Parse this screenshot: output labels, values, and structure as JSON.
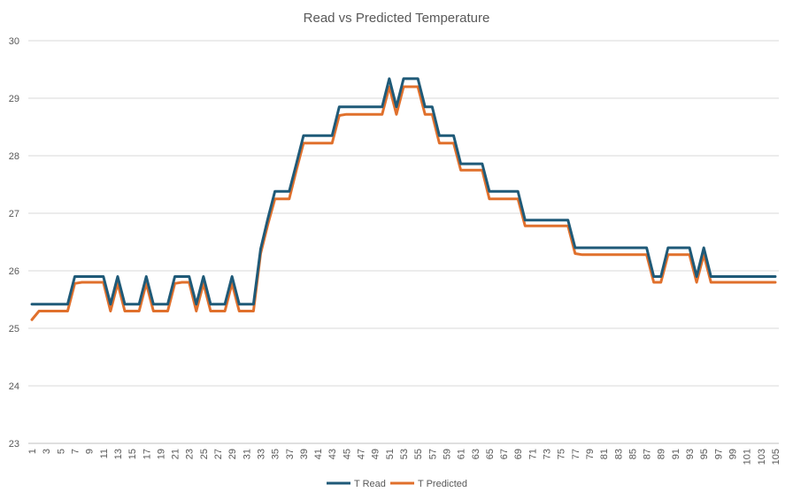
{
  "chart_data": {
    "type": "line",
    "title": "Read vs Predicted Temperature",
    "xlabel": "",
    "ylabel": "",
    "ylim": [
      23,
      30
    ],
    "yticks": [
      23,
      24,
      25,
      26,
      27,
      28,
      29,
      30
    ],
    "xticks": [
      1,
      3,
      5,
      7,
      9,
      11,
      13,
      15,
      17,
      19,
      21,
      23,
      25,
      27,
      29,
      31,
      33,
      35,
      37,
      39,
      41,
      43,
      45,
      47,
      49,
      51,
      53,
      55,
      57,
      59,
      61,
      63,
      65,
      67,
      69,
      71,
      73,
      75,
      77,
      79,
      81,
      83,
      85,
      87,
      89,
      91,
      93,
      95,
      97,
      99,
      101,
      103,
      105
    ],
    "x": [
      1,
      2,
      3,
      4,
      5,
      6,
      7,
      8,
      9,
      10,
      11,
      12,
      13,
      14,
      15,
      16,
      17,
      18,
      19,
      20,
      21,
      22,
      23,
      24,
      25,
      26,
      27,
      28,
      29,
      30,
      31,
      32,
      33,
      34,
      35,
      36,
      37,
      38,
      39,
      40,
      41,
      42,
      43,
      44,
      45,
      46,
      47,
      48,
      49,
      50,
      51,
      52,
      53,
      54,
      55,
      56,
      57,
      58,
      59,
      60,
      61,
      62,
      63,
      64,
      65,
      66,
      67,
      68,
      69,
      70,
      71,
      72,
      73,
      74,
      75,
      76,
      77,
      78,
      79,
      80,
      81,
      82,
      83,
      84,
      85,
      86,
      87,
      88,
      89,
      90,
      91,
      92,
      93,
      94,
      95,
      96,
      97,
      98,
      99,
      100,
      101,
      102,
      103,
      104,
      105
    ],
    "grid": true,
    "legend_position": "bottom",
    "series": [
      {
        "name": "T Read",
        "color": "#1f5a78",
        "values": [
          25.42,
          25.42,
          25.42,
          25.42,
          25.42,
          25.42,
          25.9,
          25.9,
          25.9,
          25.9,
          25.9,
          25.42,
          25.9,
          25.42,
          25.42,
          25.42,
          25.9,
          25.42,
          25.42,
          25.42,
          25.9,
          25.9,
          25.9,
          25.42,
          25.9,
          25.42,
          25.42,
          25.42,
          25.9,
          25.42,
          25.42,
          25.42,
          26.38,
          26.9,
          27.38,
          27.38,
          27.38,
          27.86,
          28.35,
          28.35,
          28.35,
          28.35,
          28.35,
          28.85,
          28.85,
          28.85,
          28.85,
          28.85,
          28.85,
          28.85,
          29.34,
          28.85,
          29.34,
          29.34,
          29.34,
          28.85,
          28.85,
          28.35,
          28.35,
          28.35,
          27.86,
          27.86,
          27.86,
          27.86,
          27.38,
          27.38,
          27.38,
          27.38,
          27.38,
          26.88,
          26.88,
          26.88,
          26.88,
          26.88,
          26.88,
          26.88,
          26.4,
          26.4,
          26.4,
          26.4,
          26.4,
          26.4,
          26.4,
          26.4,
          26.4,
          26.4,
          26.4,
          25.9,
          25.9,
          26.4,
          26.4,
          26.4,
          26.4,
          25.9,
          26.4,
          25.9,
          25.9,
          25.9,
          25.9,
          25.9,
          25.9,
          25.9,
          25.9,
          25.9,
          25.9
        ]
      },
      {
        "name": "T Predicted",
        "color": "#e0702c",
        "values": [
          25.15,
          25.3,
          25.3,
          25.3,
          25.3,
          25.3,
          25.78,
          25.8,
          25.8,
          25.8,
          25.8,
          25.3,
          25.78,
          25.3,
          25.3,
          25.3,
          25.78,
          25.3,
          25.3,
          25.3,
          25.78,
          25.8,
          25.8,
          25.3,
          25.78,
          25.3,
          25.3,
          25.3,
          25.78,
          25.3,
          25.3,
          25.3,
          26.3,
          26.8,
          27.25,
          27.25,
          27.25,
          27.75,
          28.22,
          28.22,
          28.22,
          28.22,
          28.22,
          28.7,
          28.72,
          28.72,
          28.72,
          28.72,
          28.72,
          28.72,
          29.2,
          28.72,
          29.2,
          29.2,
          29.2,
          28.72,
          28.72,
          28.22,
          28.22,
          28.22,
          27.75,
          27.75,
          27.75,
          27.75,
          27.25,
          27.25,
          27.25,
          27.25,
          27.25,
          26.78,
          26.78,
          26.78,
          26.78,
          26.78,
          26.78,
          26.78,
          26.3,
          26.28,
          26.28,
          26.28,
          26.28,
          26.28,
          26.28,
          26.28,
          26.28,
          26.28,
          26.28,
          25.8,
          25.8,
          26.28,
          26.28,
          26.28,
          26.28,
          25.8,
          26.28,
          25.8,
          25.8,
          25.8,
          25.8,
          25.8,
          25.8,
          25.8,
          25.8,
          25.8,
          25.8
        ]
      }
    ]
  }
}
